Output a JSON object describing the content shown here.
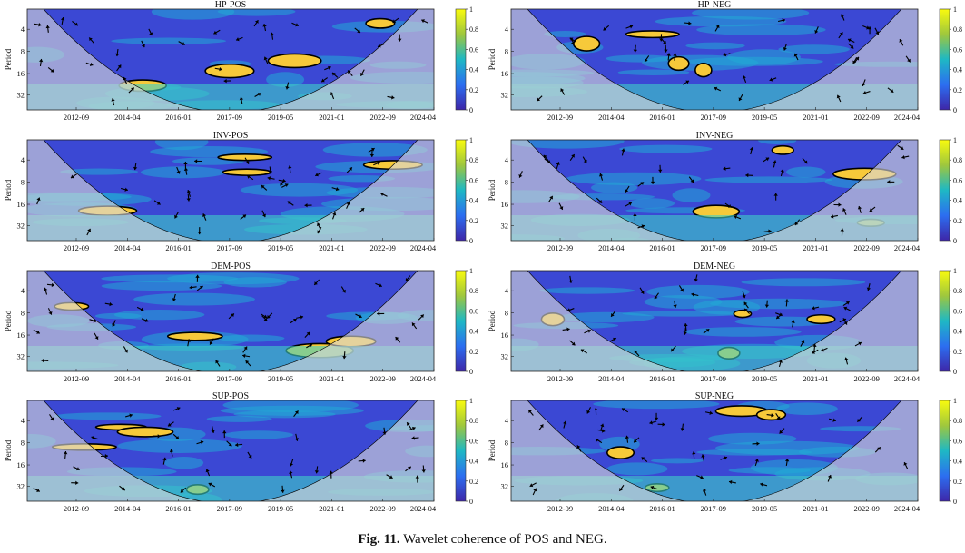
{
  "caption": {
    "label": "Fig. 11.",
    "text": "Wavelet coherence of POS and NEG."
  },
  "colors": {
    "low": "#3b1fb8",
    "mid": "#1fb8c6",
    "high": "#f6e12a",
    "arrow": "#000000",
    "coi_shade": "#d8d8d8"
  },
  "chart_data": [
    {
      "type": "heatmap",
      "title": "HP-POS",
      "ylabel": "Period",
      "yticks": [
        "4",
        "8",
        "16",
        "32"
      ],
      "xticks": [
        "2012-09",
        "2014-04",
        "2016-01",
        "2017-09",
        "2019-05",
        "2021-01",
        "2022-09",
        "2024-04"
      ],
      "colorbar": {
        "range": [
          0,
          1
        ],
        "ticks": [
          "0",
          "0.2",
          "0.4",
          "0.6",
          "0.8",
          "1"
        ]
      }
    },
    {
      "type": "heatmap",
      "title": "HP-NEG",
      "ylabel": "Period",
      "yticks": [
        "4",
        "8",
        "16",
        "32"
      ],
      "xticks": [
        "2012-09",
        "2014-04",
        "2016-01",
        "2017-09",
        "2019-05",
        "2021-01",
        "2022-09",
        "2024-04"
      ],
      "colorbar": {
        "range": [
          0,
          1
        ],
        "ticks": [
          "0",
          "0.2",
          "0.4",
          "0.6",
          "0.8",
          "1"
        ]
      }
    },
    {
      "type": "heatmap",
      "title": "INV-POS",
      "ylabel": "Period",
      "yticks": [
        "4",
        "8",
        "16",
        "32"
      ],
      "xticks": [
        "2012-09",
        "2014-04",
        "2016-01",
        "2017-09",
        "2019-05",
        "2021-01",
        "2022-09",
        "2024-04"
      ],
      "colorbar": {
        "range": [
          0,
          1
        ],
        "ticks": [
          "0",
          "0.2",
          "0.4",
          "0.6",
          "0.8",
          "1"
        ]
      }
    },
    {
      "type": "heatmap",
      "title": "INV-NEG",
      "ylabel": "Period",
      "yticks": [
        "4",
        "8",
        "16",
        "32"
      ],
      "xticks": [
        "2012-09",
        "2014-04",
        "2016-01",
        "2017-09",
        "2019-05",
        "2021-01",
        "2022-09",
        "2024-04"
      ],
      "colorbar": {
        "range": [
          0,
          1
        ],
        "ticks": [
          "0",
          "0.2",
          "0.4",
          "0.6",
          "0.8",
          "1"
        ]
      }
    },
    {
      "type": "heatmap",
      "title": "DEM-POS",
      "ylabel": "Period",
      "yticks": [
        "4",
        "8",
        "16",
        "32"
      ],
      "xticks": [
        "2012-09",
        "2014-04",
        "2016-01",
        "2017-09",
        "2019-05",
        "2021-01",
        "2022-09",
        "2024-04"
      ],
      "colorbar": {
        "range": [
          0,
          1
        ],
        "ticks": [
          "0",
          "0.2",
          "0.4",
          "0.6",
          "0.8",
          "1"
        ]
      }
    },
    {
      "type": "heatmap",
      "title": "DEM-NEG",
      "ylabel": "Period",
      "yticks": [
        "4",
        "8",
        "16",
        "32"
      ],
      "xticks": [
        "2012-09",
        "2014-04",
        "2016-01",
        "2017-09",
        "2019-05",
        "2021-01",
        "2022-09",
        "2024-04"
      ],
      "colorbar": {
        "range": [
          0,
          1
        ],
        "ticks": [
          "0",
          "0.2",
          "0.4",
          "0.6",
          "0.8",
          "1"
        ]
      }
    },
    {
      "type": "heatmap",
      "title": "SUP-POS",
      "ylabel": "Period",
      "yticks": [
        "4",
        "8",
        "16",
        "32"
      ],
      "xticks": [
        "2012-09",
        "2014-04",
        "2016-01",
        "2017-09",
        "2019-05",
        "2021-01",
        "2022-09",
        "2024-04"
      ],
      "colorbar": {
        "range": [
          0,
          1
        ],
        "ticks": [
          "0",
          "0.2",
          "0.4",
          "0.6",
          "0.8",
          "1"
        ]
      }
    },
    {
      "type": "heatmap",
      "title": "SUP-NEG",
      "ylabel": "Period",
      "yticks": [
        "4",
        "8",
        "16",
        "32"
      ],
      "xticks": [
        "2012-09",
        "2014-04",
        "2016-01",
        "2017-09",
        "2019-05",
        "2021-01",
        "2022-09",
        "2024-04"
      ],
      "colorbar": {
        "range": [
          0,
          1
        ],
        "ticks": [
          "0",
          "0.2",
          "0.4",
          "0.6",
          "0.8",
          "1"
        ]
      }
    }
  ]
}
